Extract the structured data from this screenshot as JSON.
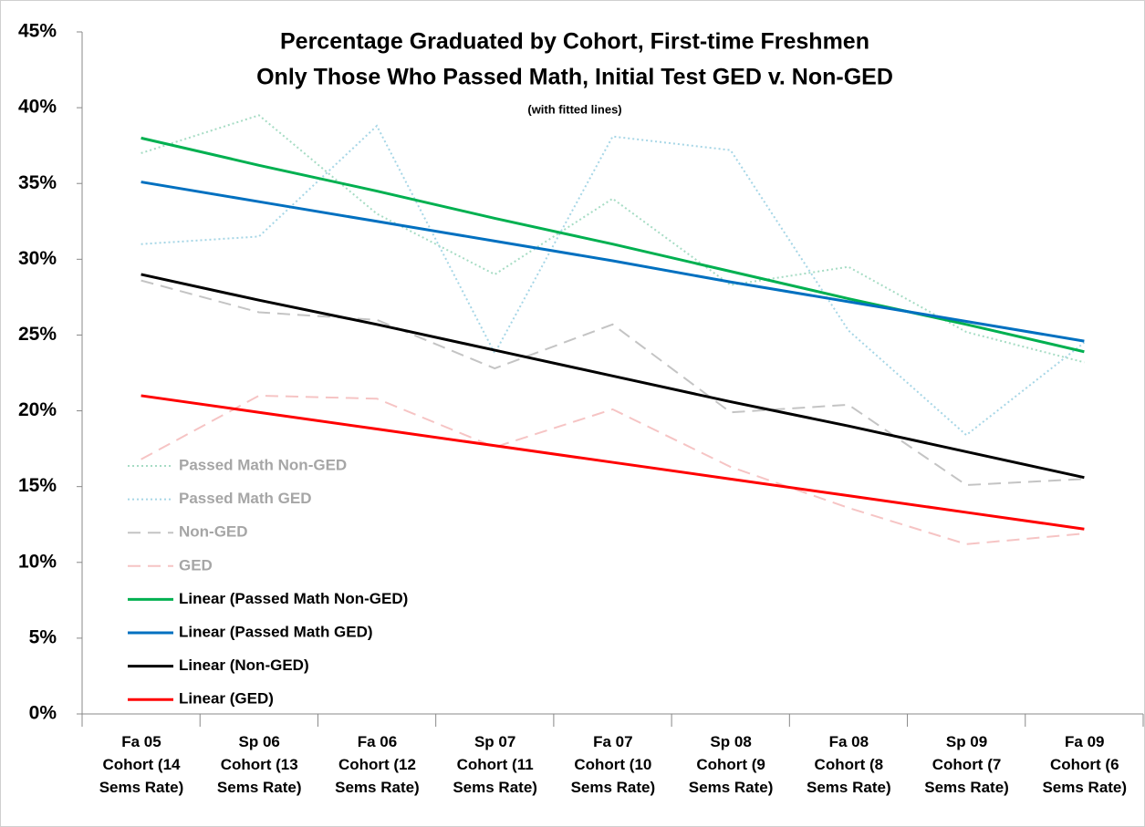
{
  "chart_data": {
    "type": "line",
    "title": [
      "Percentage Graduated by Cohort, First-time Freshmen",
      "Only Those Who Passed Math, Initial Test GED v. Non-GED"
    ],
    "subtitle": "(with fitted lines)",
    "categories": [
      "Fa 05\nCohort (14\nSems Rate)",
      "Sp 06\nCohort (13\nSems Rate)",
      "Fa 06\nCohort (12\nSems Rate)",
      "Sp 07\nCohort (11\nSems Rate)",
      "Fa 07\nCohort (10\nSems Rate)",
      "Sp 08\nCohort (9\nSems Rate)",
      "Fa 08\nCohort (8\nSems Rate)",
      "Sp 09\nCohort (7\nSems Rate)",
      "Fa 09\nCohort (6\nSems Rate)"
    ],
    "series": [
      {
        "name": "Passed Math Non-GED",
        "color": "#a6dcc4",
        "dash": "dotted",
        "values": [
          37,
          39.5,
          33,
          29,
          34,
          28.3,
          29.5,
          25.2,
          23.2
        ]
      },
      {
        "name": "Passed Math GED",
        "color": "#a6d6e6",
        "dash": "dotted",
        "values": [
          31,
          31.5,
          38.8,
          23.8,
          38.1,
          37.2,
          25.3,
          18.4,
          24.5
        ]
      },
      {
        "name": "Non-GED",
        "color": "#c4c4c4",
        "dash": "dashed",
        "values": [
          28.6,
          26.5,
          26,
          22.8,
          25.7,
          19.9,
          20.4,
          15.1,
          15.5
        ]
      },
      {
        "name": "GED",
        "color": "#f6c4c4",
        "dash": "dashed",
        "values": [
          16.8,
          21,
          20.8,
          17.6,
          20.1,
          16.3,
          13.6,
          11.2,
          11.9
        ]
      },
      {
        "name": "Linear (Passed Math Non-GED)",
        "color": "#00b050",
        "dash": "solid",
        "values": [
          38,
          36.2,
          34.5,
          32.7,
          31.0,
          29.2,
          27.4,
          25.7,
          23.9
        ]
      },
      {
        "name": "Linear (Passed Math GED)",
        "color": "#0070c0",
        "dash": "solid",
        "values": [
          35.1,
          33.8,
          32.5,
          31.2,
          29.9,
          28.5,
          27.2,
          25.9,
          24.6
        ]
      },
      {
        "name": "Linear (Non-GED)",
        "color": "#000000",
        "dash": "solid",
        "values": [
          29,
          27.3,
          25.7,
          24.0,
          22.3,
          20.6,
          19.0,
          17.3,
          15.6
        ]
      },
      {
        "name": "Linear (GED)",
        "color": "#ff0000",
        "dash": "solid",
        "values": [
          21,
          19.9,
          18.8,
          17.7,
          16.6,
          15.5,
          14.4,
          13.3,
          12.2
        ]
      }
    ],
    "ylim": [
      0,
      45
    ],
    "yticks": [
      {
        "value": 0,
        "label": "0%"
      },
      {
        "value": 5,
        "label": "5%"
      },
      {
        "value": 10,
        "label": "10%"
      },
      {
        "value": 15,
        "label": "15%"
      },
      {
        "value": 20,
        "label": "20%"
      },
      {
        "value": 25,
        "label": "25%"
      },
      {
        "value": 30,
        "label": "30%"
      },
      {
        "value": 35,
        "label": "35%"
      },
      {
        "value": 40,
        "label": "40%"
      },
      {
        "value": 45,
        "label": "45%"
      }
    ],
    "grid": false,
    "legend": "left"
  }
}
